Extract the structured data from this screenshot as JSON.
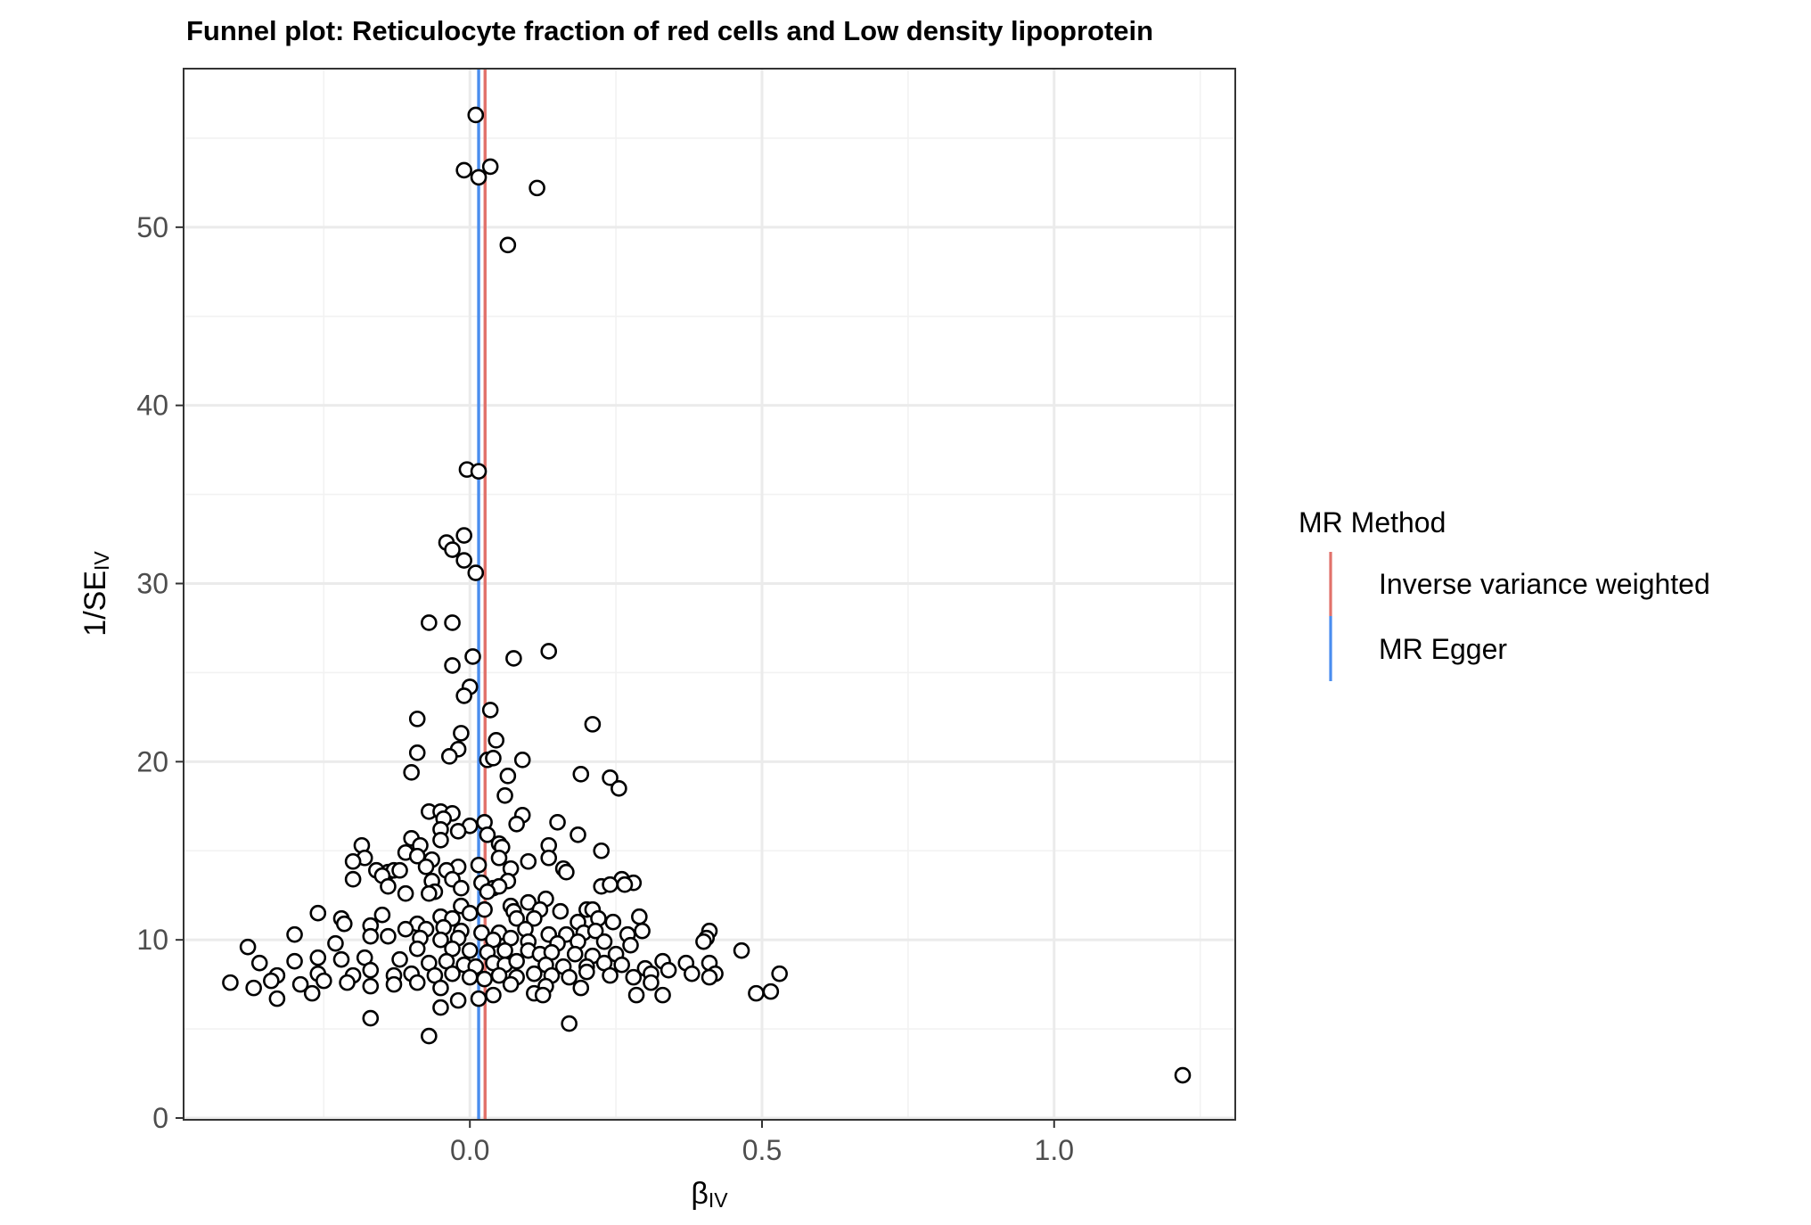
{
  "chart_data": {
    "type": "scatter",
    "title": "Funnel plot: Reticulocyte fraction of red cells and Low density lipoprotein",
    "xlabel": "β",
    "xlabel_sub": "IV",
    "ylabel": "1/SE",
    "ylabel_sub": "IV",
    "xlim": [
      -0.49,
      1.31
    ],
    "ylim": [
      -0.1,
      58.9
    ],
    "x_ticks": [
      0.0,
      0.5,
      1.0
    ],
    "x_tick_labels": [
      "0.0",
      "0.5",
      "1.0"
    ],
    "y_ticks": [
      0,
      10,
      20,
      30,
      40,
      50
    ],
    "y_tick_labels": [
      "0",
      "10",
      "20",
      "30",
      "40",
      "50"
    ],
    "grid": true,
    "legend": {
      "title": "MR Method",
      "placement": "right",
      "entries": [
        {
          "label": "Inverse variance weighted",
          "color": "#e1726b"
        },
        {
          "label": "MR Egger",
          "color": "#4a8def"
        }
      ]
    },
    "vlines": [
      {
        "method": "Inverse variance weighted",
        "x": 0.026,
        "color": "#e1726b"
      },
      {
        "method": "MR Egger",
        "x": 0.015,
        "color": "#4a8def"
      }
    ],
    "points": [
      [
        0.01,
        56.3
      ],
      [
        -0.01,
        53.2
      ],
      [
        0.015,
        52.8
      ],
      [
        0.035,
        53.4
      ],
      [
        0.115,
        52.2
      ],
      [
        0.065,
        49.0
      ],
      [
        -0.005,
        36.4
      ],
      [
        0.015,
        36.3
      ],
      [
        -0.04,
        32.3
      ],
      [
        -0.01,
        32.7
      ],
      [
        -0.03,
        31.9
      ],
      [
        -0.01,
        31.3
      ],
      [
        0.01,
        30.6
      ],
      [
        -0.07,
        27.8
      ],
      [
        -0.03,
        27.8
      ],
      [
        0.005,
        25.9
      ],
      [
        0.075,
        25.8
      ],
      [
        0.135,
        26.2
      ],
      [
        -0.03,
        25.4
      ],
      [
        0.0,
        24.2
      ],
      [
        -0.01,
        23.7
      ],
      [
        0.035,
        22.9
      ],
      [
        0.21,
        22.1
      ],
      [
        -0.09,
        22.4
      ],
      [
        -0.015,
        21.6
      ],
      [
        0.045,
        21.2
      ],
      [
        -0.09,
        20.5
      ],
      [
        -0.02,
        20.7
      ],
      [
        -0.035,
        20.3
      ],
      [
        0.03,
        20.1
      ],
      [
        0.04,
        20.2
      ],
      [
        0.09,
        20.1
      ],
      [
        -0.1,
        19.4
      ],
      [
        0.065,
        19.2
      ],
      [
        0.19,
        19.3
      ],
      [
        0.24,
        19.1
      ],
      [
        0.255,
        18.5
      ],
      [
        0.06,
        18.1
      ],
      [
        -0.07,
        17.2
      ],
      [
        -0.05,
        17.2
      ],
      [
        -0.03,
        17.1
      ],
      [
        0.09,
        17.0
      ],
      [
        -0.045,
        16.8
      ],
      [
        0.0,
        16.4
      ],
      [
        0.025,
        16.6
      ],
      [
        0.08,
        16.5
      ],
      [
        0.15,
        16.6
      ],
      [
        -0.05,
        16.2
      ],
      [
        -0.02,
        16.1
      ],
      [
        0.03,
        15.9
      ],
      [
        0.185,
        15.9
      ],
      [
        -0.1,
        15.7
      ],
      [
        -0.05,
        15.6
      ],
      [
        0.05,
        15.4
      ],
      [
        0.055,
        15.2
      ],
      [
        -0.185,
        15.3
      ],
      [
        -0.085,
        15.3
      ],
      [
        0.135,
        15.3
      ],
      [
        0.225,
        15.0
      ],
      [
        -0.11,
        14.9
      ],
      [
        -0.09,
        14.7
      ],
      [
        -0.18,
        14.6
      ],
      [
        -0.2,
        14.4
      ],
      [
        -0.065,
        14.5
      ],
      [
        0.05,
        14.6
      ],
      [
        0.1,
        14.4
      ],
      [
        0.135,
        14.6
      ],
      [
        0.015,
        14.2
      ],
      [
        -0.02,
        14.1
      ],
      [
        -0.04,
        13.9
      ],
      [
        -0.075,
        14.1
      ],
      [
        -0.16,
        13.9
      ],
      [
        -0.14,
        13.8
      ],
      [
        -0.13,
        13.9
      ],
      [
        -0.12,
        13.9
      ],
      [
        -0.15,
        13.6
      ],
      [
        0.07,
        14.0
      ],
      [
        0.16,
        14.0
      ],
      [
        0.165,
        13.8
      ],
      [
        -0.2,
        13.4
      ],
      [
        -0.03,
        13.4
      ],
      [
        -0.065,
        13.3
      ],
      [
        0.02,
        13.2
      ],
      [
        0.065,
        13.3
      ],
      [
        0.04,
        12.9
      ],
      [
        0.05,
        13.0
      ],
      [
        0.26,
        13.4
      ],
      [
        0.28,
        13.2
      ],
      [
        0.225,
        13.0
      ],
      [
        0.24,
        13.1
      ],
      [
        0.265,
        13.1
      ],
      [
        -0.14,
        13.0
      ],
      [
        -0.06,
        12.7
      ],
      [
        -0.015,
        12.9
      ],
      [
        0.03,
        12.7
      ],
      [
        -0.11,
        12.6
      ],
      [
        -0.07,
        12.6
      ],
      [
        0.13,
        12.3
      ],
      [
        0.1,
        12.1
      ],
      [
        0.07,
        11.9
      ],
      [
        -0.015,
        11.9
      ],
      [
        0.0,
        11.5
      ],
      [
        0.025,
        11.7
      ],
      [
        0.075,
        11.6
      ],
      [
        0.12,
        11.7
      ],
      [
        0.155,
        11.6
      ],
      [
        0.2,
        11.7
      ],
      [
        0.21,
        11.7
      ],
      [
        -0.26,
        11.5
      ],
      [
        -0.22,
        11.2
      ],
      [
        -0.15,
        11.4
      ],
      [
        -0.05,
        11.3
      ],
      [
        -0.03,
        11.2
      ],
      [
        0.08,
        11.2
      ],
      [
        0.11,
        11.2
      ],
      [
        0.185,
        11.0
      ],
      [
        0.22,
        11.2
      ],
      [
        0.245,
        11.0
      ],
      [
        0.29,
        11.3
      ],
      [
        -0.215,
        10.9
      ],
      [
        -0.17,
        10.8
      ],
      [
        -0.09,
        10.9
      ],
      [
        -0.11,
        10.6
      ],
      [
        -0.075,
        10.6
      ],
      [
        -0.045,
        10.7
      ],
      [
        -0.015,
        10.5
      ],
      [
        0.02,
        10.4
      ],
      [
        0.05,
        10.4
      ],
      [
        0.095,
        10.6
      ],
      [
        0.135,
        10.3
      ],
      [
        0.165,
        10.3
      ],
      [
        0.195,
        10.4
      ],
      [
        0.215,
        10.5
      ],
      [
        0.27,
        10.3
      ],
      [
        0.295,
        10.5
      ],
      [
        0.41,
        10.5
      ],
      [
        0.405,
        10.1
      ],
      [
        -0.3,
        10.3
      ],
      [
        -0.17,
        10.2
      ],
      [
        -0.14,
        10.2
      ],
      [
        -0.085,
        10.1
      ],
      [
        -0.05,
        10.0
      ],
      [
        -0.02,
        10.1
      ],
      [
        0.04,
        10.0
      ],
      [
        0.07,
        10.1
      ],
      [
        0.1,
        9.9
      ],
      [
        0.15,
        9.8
      ],
      [
        0.185,
        9.9
      ],
      [
        0.23,
        9.9
      ],
      [
        0.275,
        9.7
      ],
      [
        0.4,
        9.9
      ],
      [
        -0.38,
        9.6
      ],
      [
        -0.23,
        9.8
      ],
      [
        -0.09,
        9.5
      ],
      [
        -0.03,
        9.5
      ],
      [
        0.0,
        9.4
      ],
      [
        0.03,
        9.3
      ],
      [
        0.06,
        9.4
      ],
      [
        0.1,
        9.4
      ],
      [
        0.12,
        9.2
      ],
      [
        0.14,
        9.3
      ],
      [
        0.18,
        9.2
      ],
      [
        0.21,
        9.1
      ],
      [
        0.25,
        9.2
      ],
      [
        0.465,
        9.4
      ],
      [
        -0.3,
        8.8
      ],
      [
        -0.36,
        8.7
      ],
      [
        -0.26,
        9.0
      ],
      [
        -0.22,
        8.9
      ],
      [
        -0.18,
        9.0
      ],
      [
        -0.12,
        8.9
      ],
      [
        -0.07,
        8.7
      ],
      [
        -0.04,
        8.8
      ],
      [
        -0.01,
        8.6
      ],
      [
        0.01,
        8.5
      ],
      [
        0.04,
        8.7
      ],
      [
        0.06,
        8.6
      ],
      [
        0.08,
        8.8
      ],
      [
        0.13,
        8.6
      ],
      [
        0.16,
        8.5
      ],
      [
        0.2,
        8.5
      ],
      [
        0.23,
        8.7
      ],
      [
        0.26,
        8.6
      ],
      [
        0.3,
        8.4
      ],
      [
        0.33,
        8.8
      ],
      [
        0.37,
        8.7
      ],
      [
        0.41,
        8.7
      ],
      [
        -0.33,
        8.0
      ],
      [
        -0.26,
        8.1
      ],
      [
        -0.2,
        8.0
      ],
      [
        -0.17,
        8.3
      ],
      [
        -0.13,
        8.0
      ],
      [
        -0.1,
        8.1
      ],
      [
        -0.06,
        8.0
      ],
      [
        -0.03,
        8.1
      ],
      [
        0.0,
        7.9
      ],
      [
        0.025,
        7.8
      ],
      [
        0.05,
        8.0
      ],
      [
        0.08,
        7.9
      ],
      [
        0.11,
        8.1
      ],
      [
        0.14,
        8.0
      ],
      [
        0.17,
        7.9
      ],
      [
        0.2,
        8.2
      ],
      [
        0.24,
        8.0
      ],
      [
        0.28,
        7.9
      ],
      [
        0.31,
        8.1
      ],
      [
        0.34,
        8.3
      ],
      [
        0.38,
        8.1
      ],
      [
        0.42,
        8.1
      ],
      [
        0.53,
        8.1
      ],
      [
        -0.41,
        7.6
      ],
      [
        -0.37,
        7.3
      ],
      [
        -0.34,
        7.7
      ],
      [
        -0.29,
        7.5
      ],
      [
        -0.25,
        7.7
      ],
      [
        -0.21,
        7.6
      ],
      [
        -0.17,
        7.4
      ],
      [
        -0.13,
        7.5
      ],
      [
        -0.09,
        7.6
      ],
      [
        -0.05,
        7.3
      ],
      [
        0.07,
        7.5
      ],
      [
        0.13,
        7.4
      ],
      [
        0.19,
        7.3
      ],
      [
        0.31,
        7.6
      ],
      [
        0.41,
        7.9
      ],
      [
        -0.33,
        6.7
      ],
      [
        -0.27,
        7.0
      ],
      [
        -0.02,
        6.6
      ],
      [
        0.015,
        6.7
      ],
      [
        0.04,
        6.9
      ],
      [
        0.11,
        7.0
      ],
      [
        0.125,
        6.9
      ],
      [
        0.285,
        6.9
      ],
      [
        0.33,
        6.9
      ],
      [
        0.49,
        7.0
      ],
      [
        0.515,
        7.1
      ],
      [
        -0.05,
        6.2
      ],
      [
        -0.17,
        5.6
      ],
      [
        0.17,
        5.3
      ],
      [
        -0.07,
        4.6
      ],
      [
        1.22,
        2.4
      ]
    ]
  }
}
